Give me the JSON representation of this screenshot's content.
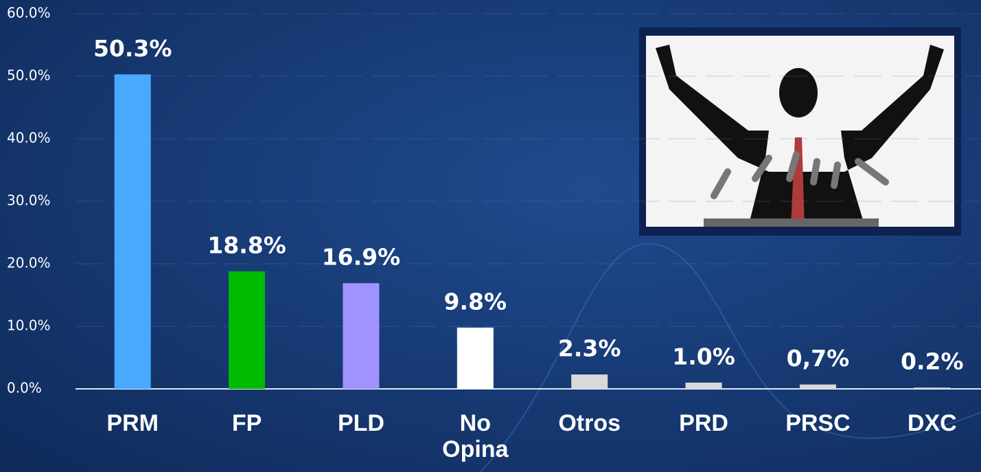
{
  "chart_data": {
    "type": "bar",
    "categories": [
      "PRM",
      "FP",
      "PLD",
      "No Opina",
      "Otros",
      "PRD",
      "PRSC",
      "DXC"
    ],
    "values": [
      50.3,
      18.8,
      16.9,
      9.8,
      2.3,
      1.0,
      0.7,
      0.2
    ],
    "value_labels": [
      "50.3%",
      "18.8%",
      "16.9%",
      "9.8%",
      "2.3%",
      "1.0%",
      "0,7%",
      "0.2%"
    ],
    "colors": [
      "#4aa8ff",
      "#00bb00",
      "#a093ff",
      "#ffffff",
      "#d9d9d9",
      "#d9d9d9",
      "#d9d9d9",
      "#d9d9d9"
    ],
    "ylim": [
      0,
      60
    ],
    "yticks": [
      {
        "value": 0,
        "label": "0.0%"
      },
      {
        "value": 10,
        "label": "10.0%"
      },
      {
        "value": 20,
        "label": "20.0%"
      },
      {
        "value": 30,
        "label": "30.0%"
      },
      {
        "value": 40,
        "label": "40.0%"
      },
      {
        "value": 50,
        "label": "50.0%"
      },
      {
        "value": 60,
        "label": "60.0%"
      }
    ],
    "grid": true
  }
}
